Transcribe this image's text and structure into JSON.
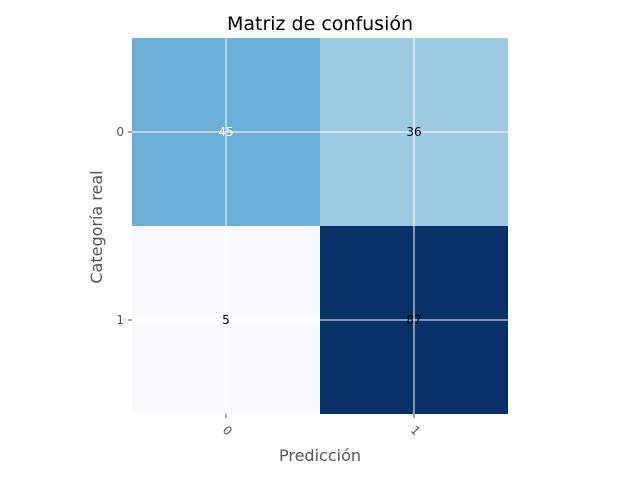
{
  "chart_data": {
    "type": "heatmap",
    "title": "Matriz de confusión",
    "xlabel": "Predicción",
    "ylabel": "Categoría real",
    "x_categories": [
      "0",
      "1"
    ],
    "y_categories": [
      "0",
      "1"
    ],
    "values": [
      [
        45,
        36
      ],
      [
        5,
        87
      ]
    ],
    "colormap": "Blues",
    "grid": true,
    "colors": {
      "cell_0_0": "#6baed6",
      "cell_0_1": "#9ecae1",
      "cell_1_0": "#f7fbff",
      "cell_1_1": "#08306b",
      "text_dark": "#000000",
      "text_light": "#ffffff",
      "axis_text": "#555555",
      "grid": "#ffffff"
    }
  }
}
